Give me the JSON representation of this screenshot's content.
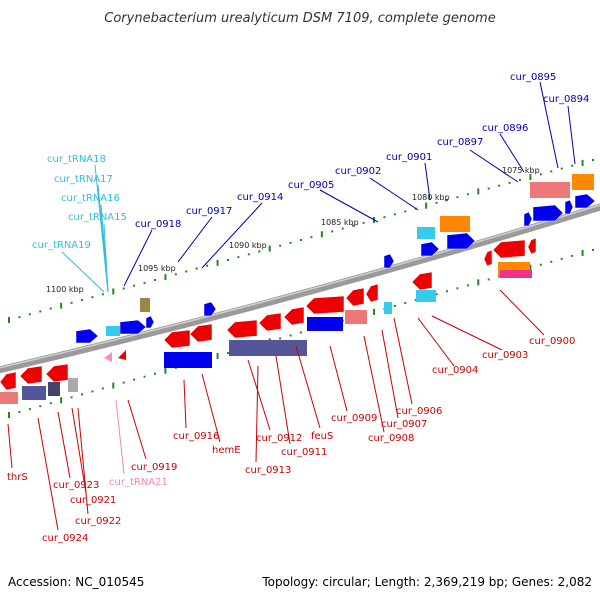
{
  "title": "Corynebacterium urealyticum DSM 7109, complete genome",
  "footer": {
    "accession": "Accession: NC_010545",
    "summary": "Topology: circular; Length: 2,369,219 bp; Genes: 2,082"
  },
  "scale_labels": [
    "1075 kbp",
    "1080 kbp",
    "1085 kbp",
    "1090 kbp",
    "1095 kbp",
    "1100 kbp"
  ],
  "top_labels": [
    {
      "text": "cur_0895",
      "color": "#0000aa"
    },
    {
      "text": "cur_0894",
      "color": "#0000aa"
    },
    {
      "text": "cur_0896",
      "color": "#0000aa"
    },
    {
      "text": "cur_0897",
      "color": "#0000aa"
    },
    {
      "text": "cur_0901",
      "color": "#0000aa"
    },
    {
      "text": "cur_0902",
      "color": "#0000aa"
    },
    {
      "text": "cur_0905",
      "color": "#0000aa"
    },
    {
      "text": "cur_0914",
      "color": "#0000aa"
    },
    {
      "text": "cur_0917",
      "color": "#0000aa"
    },
    {
      "text": "cur_0918",
      "color": "#0000aa"
    },
    {
      "text": "cur_tRNA18",
      "color": "#33bbdd"
    },
    {
      "text": "cur_tRNA17",
      "color": "#33bbdd"
    },
    {
      "text": "cur_tRNA16",
      "color": "#33bbdd"
    },
    {
      "text": "cur_tRNA15",
      "color": "#33bbdd"
    },
    {
      "text": "cur_tRNA19",
      "color": "#33bbdd"
    }
  ],
  "bottom_labels": [
    {
      "text": "cur_0900",
      "color": "#cc0000"
    },
    {
      "text": "cur_0903",
      "color": "#cc0000"
    },
    {
      "text": "cur_0904",
      "color": "#cc0000"
    },
    {
      "text": "cur_0906",
      "color": "#cc0000"
    },
    {
      "text": "cur_0907",
      "color": "#cc0000"
    },
    {
      "text": "cur_0908",
      "color": "#cc0000"
    },
    {
      "text": "cur_0909",
      "color": "#cc0000"
    },
    {
      "text": "feuS",
      "color": "#cc0000"
    },
    {
      "text": "cur_0911",
      "color": "#cc0000"
    },
    {
      "text": "cur_0912",
      "color": "#cc0000"
    },
    {
      "text": "cur_0913",
      "color": "#cc0000"
    },
    {
      "text": "hemE",
      "color": "#cc0000"
    },
    {
      "text": "cur_0916",
      "color": "#cc0000"
    },
    {
      "text": "cur_0919",
      "color": "#cc0000"
    },
    {
      "text": "cur_tRNA21",
      "color": "#ee88bb"
    },
    {
      "text": "thrS",
      "color": "#cc0000"
    },
    {
      "text": "cur_0923",
      "color": "#cc0000"
    },
    {
      "text": "cur_0921",
      "color": "#cc0000"
    },
    {
      "text": "cur_0922",
      "color": "#cc0000"
    },
    {
      "text": "cur_0924",
      "color": "#cc0000"
    }
  ],
  "colors": {
    "forward_gene": "#0000ee",
    "reverse_gene": "#ee0000",
    "trna_forward": "#33ccee",
    "trna_reverse": "#ff88cc",
    "cog_purple": "#555599",
    "cog_orange": "#ff8800",
    "cog_salmon": "#ee7777",
    "cog_olive": "#998844",
    "backbone": "#777777",
    "gc_tick": "#228822"
  }
}
